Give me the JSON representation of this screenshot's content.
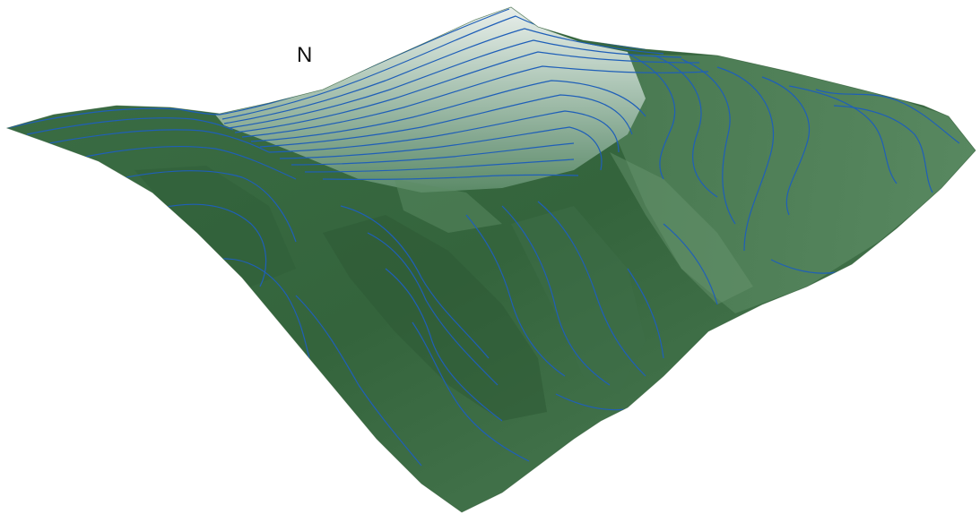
{
  "north_label": "N",
  "colors": {
    "background": "#ffffff",
    "terrain_low": "#33603a",
    "terrain_mid": "#4c7d55",
    "terrain_high": "#dde7e2",
    "contour_line": "#1f5fb8"
  }
}
